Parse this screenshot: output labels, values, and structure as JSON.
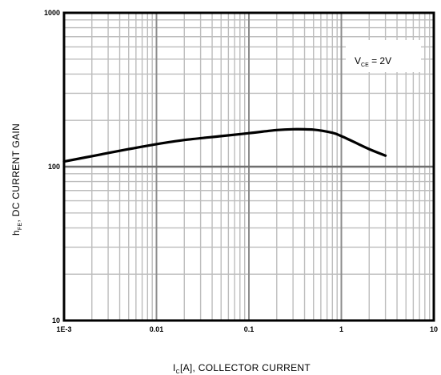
{
  "chart_data": {
    "type": "line",
    "title": "",
    "xlabel": {
      "main": "I",
      "sub": "C",
      "rest": "[A], COLLECTOR CURRENT"
    },
    "ylabel": {
      "main": "h",
      "sub": "FE",
      "rest": ", DC CURRENT GAIN"
    },
    "x_scale": "log",
    "y_scale": "log",
    "xlim": [
      0.001,
      10
    ],
    "ylim": [
      10,
      1000
    ],
    "x_ticks": [
      0.001,
      0.01,
      0.1,
      1,
      10
    ],
    "x_tick_labels": [
      "1E-3",
      "0.01",
      "0.1",
      "1",
      "10"
    ],
    "y_ticks": [
      10,
      100,
      1000
    ],
    "y_tick_labels": [
      "10",
      "100",
      "1000"
    ],
    "grid": true,
    "annotation": {
      "main": "V",
      "sub": "CE",
      "rest": " = 2V",
      "position": "top-right"
    },
    "series": [
      {
        "x": [
          0.001,
          0.002,
          0.005,
          0.01,
          0.02,
          0.05,
          0.1,
          0.2,
          0.3,
          0.5,
          0.8,
          1.0,
          1.5,
          2.0,
          3.0
        ],
        "y": [
          108,
          117,
          130,
          140,
          149,
          158,
          165,
          173,
          175,
          174,
          166,
          158,
          141,
          130,
          118
        ]
      }
    ]
  }
}
